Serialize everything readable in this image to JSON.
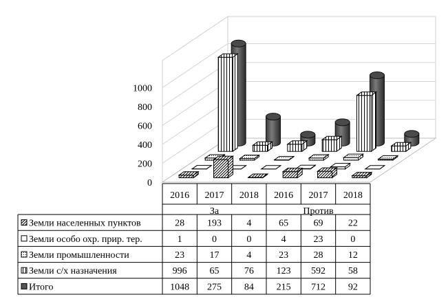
{
  "chart_data": {
    "type": "bar",
    "style": "3d-cylinder-with-data-table",
    "years": [
      "2016",
      "2017",
      "2018",
      "2016",
      "2017",
      "2018"
    ],
    "groups": [
      {
        "label": "За",
        "span": 3
      },
      {
        "label": "Против",
        "span": 3
      }
    ],
    "y_ticks": [
      "0",
      "200",
      "400",
      "600",
      "800",
      "1000"
    ],
    "ylim": [
      0,
      1200
    ],
    "grid": true,
    "series": [
      {
        "name": "Земли населенных пунктов",
        "pattern": "diag",
        "values": [
          28,
          193,
          4,
          65,
          69,
          22
        ]
      },
      {
        "name": "Земли особо охр. прир. тер.",
        "pattern": "white",
        "values": [
          1,
          0,
          0,
          4,
          23,
          0
        ]
      },
      {
        "name": "Земли промышленности",
        "pattern": "dots",
        "values": [
          23,
          17,
          4,
          23,
          28,
          12
        ]
      },
      {
        "name": "Земли с/х назначения",
        "pattern": "vstripe",
        "values": [
          996,
          65,
          76,
          123,
          592,
          58
        ]
      },
      {
        "name": "Итого",
        "pattern": "dark",
        "values": [
          1048,
          275,
          84,
          215,
          712,
          92
        ]
      }
    ]
  }
}
